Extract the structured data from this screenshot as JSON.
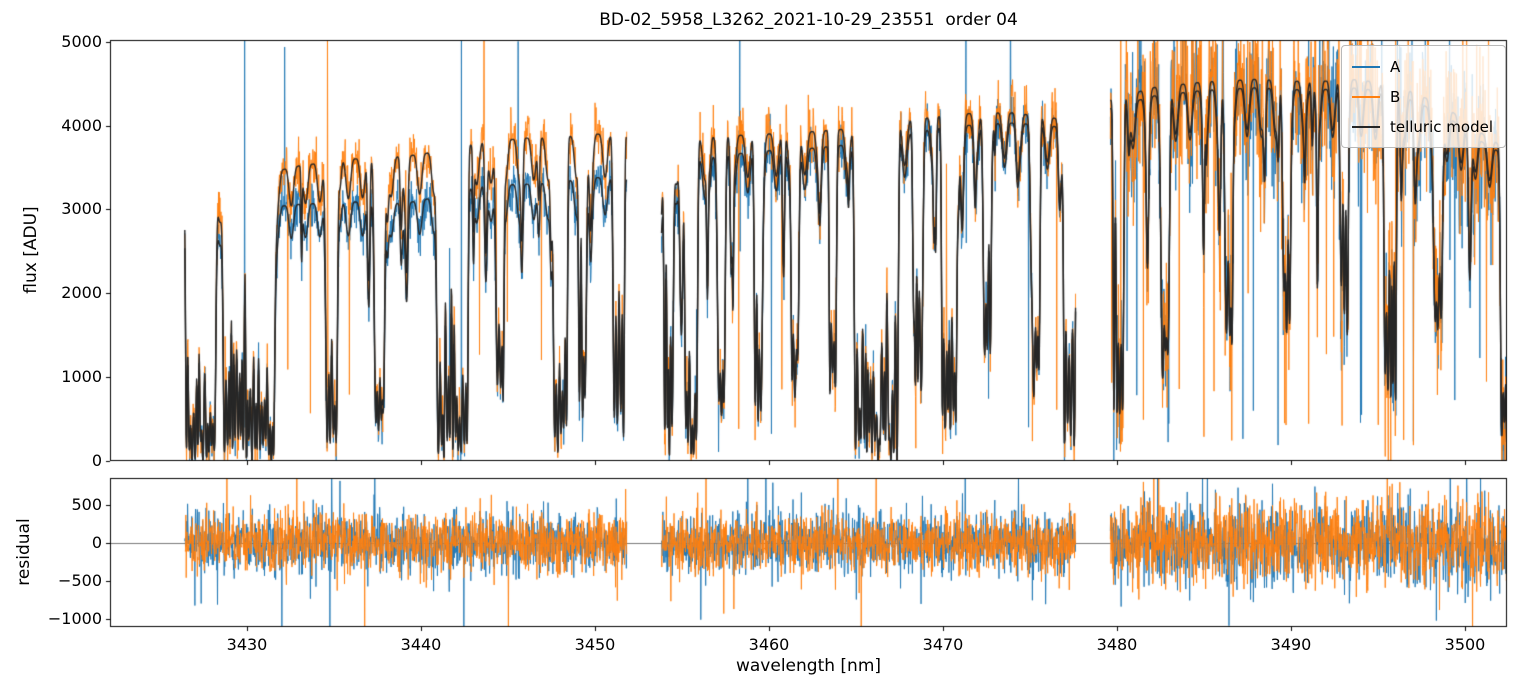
{
  "title": "BD-02_5958_L3262_2021-10-29_23551  order 04",
  "axes": {
    "x": {
      "label": "wavelength [nm]",
      "range": [
        3422.1,
        3502.4
      ],
      "ticks": [
        3430,
        3440,
        3450,
        3460,
        3470,
        3480,
        3490,
        3500
      ]
    },
    "flux": {
      "label": "flux [ADU]",
      "range": [
        0,
        5020
      ],
      "ticks": [
        0,
        1000,
        2000,
        3000,
        4000,
        5000
      ]
    },
    "residual": {
      "label": "residual",
      "range": [
        -1105,
        855
      ],
      "ticks": [
        -1000,
        -500,
        0,
        500
      ]
    }
  },
  "legend": [
    {
      "label": "A",
      "color": "#1f77b4"
    },
    {
      "label": "B",
      "color": "#ff7f0e"
    },
    {
      "label": "telluric model",
      "color": "#262626"
    }
  ],
  "chart_data": {
    "type": "line",
    "x_unit": "nm",
    "segments": [
      [
        3426.4,
        3451.8
      ],
      [
        3453.8,
        3477.6
      ],
      [
        3479.6,
        3502.5
      ]
    ],
    "sample_step": 0.02,
    "seed": 20211029,
    "series": [
      {
        "name": "A",
        "color": "#1f77b4",
        "continuum": [
          [
            3426.4,
            2900
          ],
          [
            3428,
            2950
          ],
          [
            3430,
            3000
          ],
          [
            3433,
            3060
          ],
          [
            3436,
            3090
          ],
          [
            3439,
            3070
          ],
          [
            3441,
            3150
          ],
          [
            3443.5,
            3280
          ],
          [
            3446,
            3300
          ],
          [
            3448,
            3330
          ],
          [
            3450,
            3380
          ],
          [
            3451.8,
            3360
          ],
          [
            3453.8,
            3480
          ],
          [
            3456,
            3600
          ],
          [
            3458,
            3660
          ],
          [
            3460,
            3700
          ],
          [
            3462,
            3720
          ],
          [
            3464,
            3760
          ],
          [
            3466,
            3800
          ],
          [
            3468,
            3900
          ],
          [
            3470,
            3980
          ],
          [
            3472,
            4010
          ],
          [
            3474,
            4030
          ],
          [
            3476,
            4000
          ],
          [
            3477.6,
            3950
          ],
          [
            3479.6,
            4200
          ],
          [
            3482,
            4350
          ],
          [
            3485,
            4420
          ],
          [
            3488,
            4450
          ],
          [
            3491,
            4420
          ],
          [
            3494,
            4450
          ],
          [
            3497,
            4300
          ],
          [
            3499,
            4100
          ],
          [
            3501,
            3800
          ],
          [
            3502.5,
            3620
          ]
        ]
      },
      {
        "name": "B",
        "color": "#ff7f0e",
        "continuum": [
          [
            3426.4,
            3150
          ],
          [
            3428,
            3250
          ],
          [
            3430,
            3380
          ],
          [
            3433,
            3520
          ],
          [
            3436,
            3600
          ],
          [
            3439,
            3630
          ],
          [
            3441,
            3690
          ],
          [
            3443.5,
            3800
          ],
          [
            3446,
            3850
          ],
          [
            3448,
            3860
          ],
          [
            3450,
            3900
          ],
          [
            3451.8,
            3870
          ],
          [
            3453.8,
            3760
          ],
          [
            3456,
            3850
          ],
          [
            3458,
            3880
          ],
          [
            3460,
            3900
          ],
          [
            3462,
            3920
          ],
          [
            3464,
            3950
          ],
          [
            3466,
            4000
          ],
          [
            3468,
            4060
          ],
          [
            3470,
            4120
          ],
          [
            3472,
            4150
          ],
          [
            3474,
            4150
          ],
          [
            3476,
            4100
          ],
          [
            3477.6,
            4050
          ],
          [
            3479.6,
            4300
          ],
          [
            3482,
            4450
          ],
          [
            3485,
            4520
          ],
          [
            3488,
            4550
          ],
          [
            3491,
            4520
          ],
          [
            3494,
            4550
          ],
          [
            3497,
            4400
          ],
          [
            3499,
            4200
          ],
          [
            3501,
            3900
          ],
          [
            3502.5,
            3700
          ]
        ]
      },
      {
        "name": "telluric model",
        "color": "#262626"
      }
    ],
    "telluric": {
      "deep_regions": [
        [
          3426.4,
          3428.2,
          1.0
        ],
        [
          3428.6,
          3431.6,
          1.0
        ],
        [
          3434.5,
          3435.2,
          0.95
        ],
        [
          3437.3,
          3437.9,
          0.85
        ],
        [
          3440.9,
          3442.7,
          1.0
        ],
        [
          3444.3,
          3444.8,
          0.8
        ],
        [
          3447.6,
          3448.4,
          0.95
        ],
        [
          3449.0,
          3449.5,
          0.8
        ],
        [
          3451.0,
          3451.7,
          0.9
        ],
        [
          3453.9,
          3454.5,
          1.0
        ],
        [
          3455.1,
          3455.9,
          1.0
        ],
        [
          3457.0,
          3457.5,
          0.8
        ],
        [
          3459.1,
          3459.6,
          0.85
        ],
        [
          3461.2,
          3461.7,
          0.7
        ],
        [
          3463.4,
          3463.9,
          0.75
        ],
        [
          3464.9,
          3467.4,
          1.0
        ],
        [
          3468.3,
          3468.8,
          0.8
        ],
        [
          3469.9,
          3470.8,
          0.9
        ],
        [
          3472.3,
          3472.8,
          0.7
        ],
        [
          3475.1,
          3475.6,
          0.75
        ],
        [
          3476.9,
          3477.6,
          0.95
        ],
        [
          3479.7,
          3480.4,
          0.9
        ],
        [
          3482.5,
          3483.0,
          0.7
        ],
        [
          3486.2,
          3486.7,
          0.65
        ],
        [
          3489.5,
          3490.0,
          0.6
        ],
        [
          3492.8,
          3493.3,
          0.6
        ],
        [
          3495.3,
          3496.1,
          0.8
        ],
        [
          3498.2,
          3498.7,
          0.6
        ],
        [
          3502.0,
          3502.5,
          0.95
        ]
      ],
      "background_lines": 80,
      "comb": {
        "period": 0.82,
        "depth": 0.13
      }
    },
    "noise": {
      "sigma_A": [
        130,
        150,
        420
      ],
      "sigma_B": [
        150,
        170,
        470
      ],
      "spike_down_prob": [
        0.004,
        0.004,
        0.01
      ],
      "spike_up_prob": [
        0.002,
        0.002,
        0.008
      ]
    },
    "residual": {
      "sigma": [
        200,
        205,
        290
      ],
      "spike_prob": 0.008
    },
    "forced_spikes": [
      {
        "x": 3429.85,
        "series": "A",
        "hi": 5150,
        "lo": 400
      },
      {
        "x": 3434.6,
        "series": "B",
        "hi": 5150,
        "lo": 3000
      },
      {
        "x": 3442.3,
        "series": "A",
        "hi": 5150,
        "lo": 80
      },
      {
        "x": 3458.3,
        "series": "A",
        "hi": 5150,
        "lo": 2500
      },
      {
        "x": 3471.3,
        "series": "A",
        "hi": 5150,
        "lo": 2600
      },
      {
        "x": 3480.2,
        "series": "B",
        "hi": 5150,
        "lo": 200
      },
      {
        "x": 3487.5,
        "series": "B",
        "hi": 5150,
        "lo": 2000
      },
      {
        "x": 3496.0,
        "series": "B",
        "hi": 5150,
        "lo": 1500
      },
      {
        "x": 3502.45,
        "series": "B",
        "hi": 5150,
        "lo": 100
      }
    ]
  }
}
